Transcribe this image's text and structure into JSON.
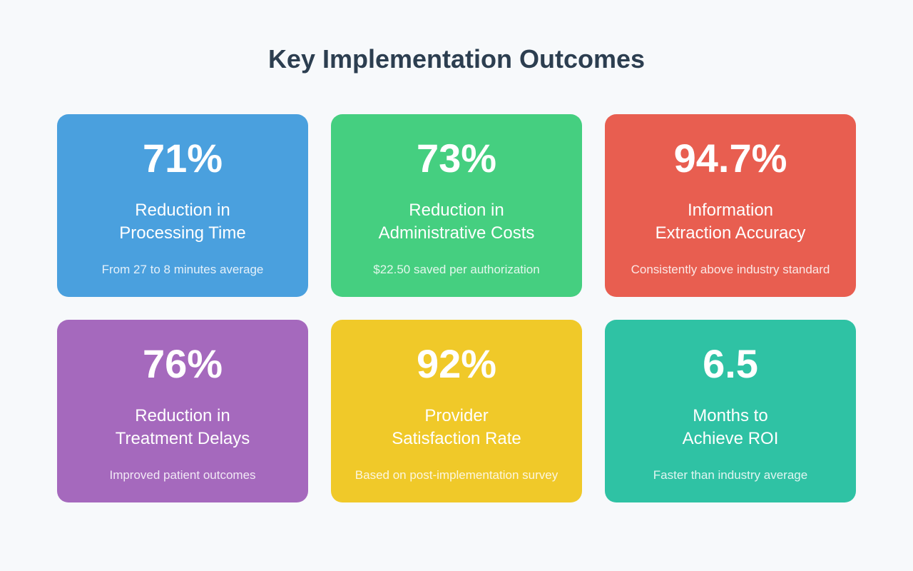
{
  "header": {
    "title": "Key Implementation Outcomes"
  },
  "cards": [
    {
      "value": "71%",
      "label_line1": "Reduction in",
      "label_line2": "Processing Time",
      "note": "From 27 to 8 minutes average",
      "color": "#4aa0de"
    },
    {
      "value": "73%",
      "label_line1": "Reduction in",
      "label_line2": "Administrative Costs",
      "note": "$22.50 saved per authorization",
      "color": "#45cf80"
    },
    {
      "value": "94.7%",
      "label_line1": "Information",
      "label_line2": "Extraction Accuracy",
      "note": "Consistently above industry standard",
      "color": "#e85e50"
    },
    {
      "value": "76%",
      "label_line1": "Reduction in",
      "label_line2": "Treatment Delays",
      "note": "Improved patient outcomes",
      "color": "#a569bd"
    },
    {
      "value": "92%",
      "label_line1": "Provider",
      "label_line2": "Satisfaction Rate",
      "note": "Based on post-implementation survey",
      "color": "#f0c929"
    },
    {
      "value": "6.5",
      "label_line1": "Months to",
      "label_line2": "Achieve ROI",
      "note": "Faster than industry average",
      "color": "#2fc2a4"
    }
  ]
}
